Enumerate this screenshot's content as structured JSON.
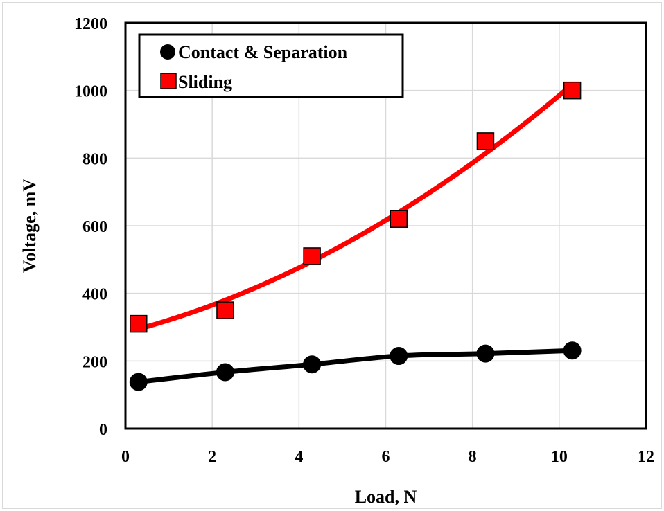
{
  "chart_data": {
    "type": "scatter",
    "xlabel": "Load, N",
    "ylabel": "Voltage, mV",
    "xlim": [
      0,
      12
    ],
    "ylim": [
      0,
      1200
    ],
    "xticks": [
      0,
      2,
      4,
      6,
      8,
      10,
      12
    ],
    "yticks": [
      0,
      200,
      400,
      600,
      800,
      1000,
      1200
    ],
    "grid": true,
    "legend_position": "top-left",
    "series": [
      {
        "name": "Contact & Separation",
        "marker": "circle",
        "color": "#000000",
        "x": [
          0.3,
          2.3,
          4.3,
          6.3,
          8.3,
          10.3
        ],
        "y": [
          138,
          167,
          190,
          215,
          222,
          231
        ],
        "trendline": "smooth"
      },
      {
        "name": "Sliding",
        "marker": "square",
        "color": "#ff0000",
        "x": [
          0.3,
          2.3,
          4.3,
          6.3,
          8.3,
          10.3
        ],
        "y": [
          310,
          350,
          510,
          620,
          850,
          1000
        ],
        "trendline": "quadratic"
      }
    ]
  }
}
